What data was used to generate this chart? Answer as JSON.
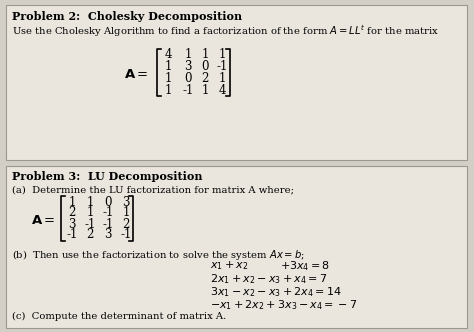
{
  "bg_color": "#d3cfc7",
  "box_color": "#eae6de",
  "box_edge_color": "#999990",
  "p2_title": "Problem 2:  Cholesky Decomposition",
  "p2_desc": "Use the Cholesky Algorithm to find a factorization of the form $A = LL^t$ for the matrix",
  "p3_title": "Problem 3:  LU Decomposition",
  "p3a_text": "(a)  Determine the LU factorization for matrix A where;",
  "p3b_text": "(b)  Then use the factorization to solve the system $Ax = b$;",
  "p3c_text": "(c)  Compute the determinant of matrix A.",
  "p2_matrix_rows": [
    [
      "4",
      "1",
      "1",
      "1"
    ],
    [
      "1",
      "3",
      "0",
      "-1"
    ],
    [
      "1",
      "0",
      "2",
      "1"
    ],
    [
      "1",
      "-1",
      "1",
      "4"
    ]
  ],
  "p3_matrix_rows": [
    [
      "1",
      "1",
      "0",
      "3"
    ],
    [
      "2",
      "1",
      "-1",
      "1"
    ],
    [
      "3",
      "-1",
      "-1",
      "2"
    ],
    [
      "-1",
      "2",
      "3",
      "-1"
    ]
  ],
  "eq1a": "$x_1 + x_2$",
  "eq1b": "$+ 3x_4 = 8$",
  "eq2": "$2x_1 + x_2 - x_3 + x_4 = 7$",
  "eq3": "$3x_1 - x_2 - x_3 + 2x_4 = 14$",
  "eq4": "$-x_1 + 2x_2 + 3x_3 - x_4 = -7$",
  "title_fontsize": 8.0,
  "body_fontsize": 7.2,
  "matrix_fontsize": 8.5,
  "eq_fontsize": 8.0
}
